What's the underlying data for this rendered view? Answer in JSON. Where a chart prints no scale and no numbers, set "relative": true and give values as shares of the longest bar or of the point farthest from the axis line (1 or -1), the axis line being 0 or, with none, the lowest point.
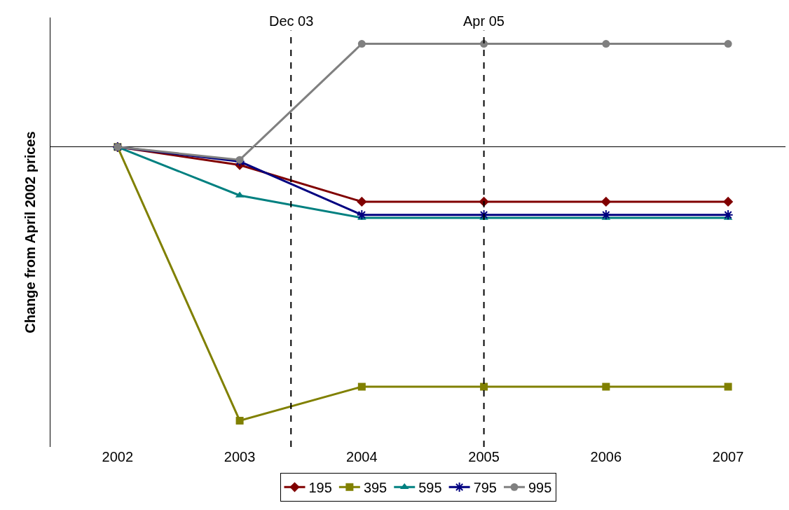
{
  "chart_data": {
    "type": "line",
    "relative": true,
    "ylabel": "Change from April 2002 prices",
    "x": [
      2002,
      2003,
      2004,
      2005,
      2006,
      2007
    ],
    "xlim": [
      2001.45,
      2007.47
    ],
    "xticks": [
      2002,
      2003,
      2004,
      2005,
      2006,
      2007
    ],
    "series": [
      {
        "name": "195",
        "color": "#800000",
        "marker": "diamond",
        "values": [
          0,
          -0.066,
          -0.2,
          -0.2,
          -0.2,
          -0.2
        ]
      },
      {
        "name": "395",
        "color": "#808000",
        "marker": "square",
        "values": [
          0,
          -1,
          -0.876,
          -0.876,
          -0.876,
          -0.876
        ]
      },
      {
        "name": "595",
        "color": "#008080",
        "marker": "triangle",
        "values": [
          0,
          -0.177,
          -0.259,
          -0.259,
          -0.259,
          -0.259
        ]
      },
      {
        "name": "795",
        "color": "#000080",
        "marker": "cross",
        "values": [
          0,
          -0.053,
          -0.248,
          -0.248,
          -0.248,
          -0.248
        ]
      },
      {
        "name": "995",
        "color": "#808080",
        "marker": "circle",
        "values": [
          0,
          -0.047,
          0.377,
          0.377,
          0.377,
          0.377
        ]
      }
    ],
    "ref_lines": [
      {
        "axis": "x",
        "value": 2003.42,
        "label": "Dec 03",
        "color": "#000000",
        "line_style": "dashed"
      },
      {
        "axis": "x",
        "value": 2005,
        "label": "Apr 05",
        "color": "#000000",
        "line_style": "dashed"
      }
    ],
    "legend": "bottom"
  }
}
